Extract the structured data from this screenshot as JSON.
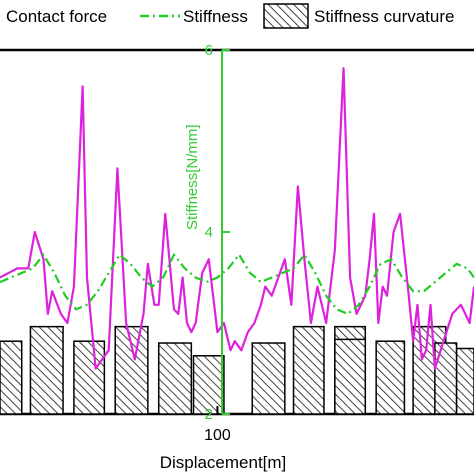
{
  "chart_data": {
    "type": "line",
    "title": "",
    "xlabel": "Displacement[m]",
    "ylabel": "Stiffness[N/mm]",
    "x_ticks": [
      100
    ],
    "y_ticks": [
      2,
      4,
      6
    ],
    "xlim": [
      0,
      218
    ],
    "ylim": [
      2,
      6
    ],
    "legend_position": "top",
    "colors": {
      "contact_force": "#dd22dd",
      "stiffness": "#22cc22",
      "axis_green": "#33cc33",
      "bars_edge": "#000000",
      "hatch": "#444444"
    },
    "series": [
      {
        "name": "Contact force",
        "style": "solid-line",
        "x": [
          0,
          4,
          8,
          13,
          16,
          20,
          22,
          24,
          28,
          31,
          34,
          38,
          40,
          44,
          50,
          54,
          58,
          62,
          66,
          68,
          71,
          73,
          76,
          80,
          82,
          84,
          86,
          88,
          90,
          93,
          96,
          100,
          103,
          106,
          108,
          111,
          114,
          117,
          120,
          122,
          125,
          128,
          131,
          134,
          137,
          140,
          143,
          146,
          150,
          154,
          158,
          161,
          164,
          168,
          170,
          172,
          174,
          176,
          178,
          181,
          184,
          188,
          190,
          192,
          194,
          196,
          198,
          200,
          204,
          208,
          212,
          216,
          218
        ],
        "y": [
          3.5,
          3.55,
          3.6,
          3.6,
          4.0,
          3.7,
          3.1,
          3.35,
          3.1,
          3.0,
          3.4,
          5.6,
          3.5,
          2.5,
          2.7,
          4.7,
          3.0,
          2.6,
          3.1,
          3.65,
          3.2,
          3.2,
          4.2,
          3.15,
          3.1,
          3.5,
          3.0,
          2.9,
          3.0,
          3.55,
          3.7,
          2.9,
          3.0,
          2.7,
          2.8,
          2.7,
          2.9,
          3.0,
          3.2,
          3.4,
          3.3,
          3.5,
          3.7,
          3.2,
          4.5,
          3.7,
          3.0,
          3.4,
          3.0,
          3.8,
          5.8,
          3.5,
          3.1,
          3.3,
          3.7,
          4.2,
          3.0,
          3.4,
          3.3,
          4.0,
          4.2,
          3.3,
          2.8,
          3.2,
          2.6,
          2.7,
          3.2,
          2.5,
          2.8,
          3.1,
          3.2,
          3.0,
          3.4
        ]
      },
      {
        "name": "Stiffness",
        "style": "dash-dot-line",
        "x": [
          0,
          5,
          10,
          15,
          20,
          25,
          30,
          35,
          40,
          45,
          50,
          55,
          60,
          65,
          70,
          75,
          80,
          85,
          90,
          95,
          100,
          105,
          110,
          115,
          120,
          125,
          130,
          135,
          140,
          145,
          150,
          155,
          160,
          165,
          170,
          175,
          180,
          185,
          190,
          195,
          200,
          205,
          210,
          215,
          218
        ],
        "y": [
          3.45,
          3.5,
          3.55,
          3.6,
          3.75,
          3.55,
          3.3,
          3.15,
          3.2,
          3.35,
          3.55,
          3.75,
          3.65,
          3.5,
          3.4,
          3.5,
          3.75,
          3.6,
          3.5,
          3.45,
          3.5,
          3.6,
          3.75,
          3.55,
          3.45,
          3.5,
          3.55,
          3.6,
          3.75,
          3.55,
          3.3,
          3.15,
          3.1,
          3.2,
          3.4,
          3.65,
          3.7,
          3.5,
          3.35,
          3.35,
          3.45,
          3.55,
          3.65,
          3.6,
          3.5
        ]
      },
      {
        "name": "Stiffness curvature",
        "style": "hatched-bars",
        "bars": [
          {
            "x0": 0,
            "x1": 10,
            "y": 2.8
          },
          {
            "x0": 14,
            "x1": 29,
            "y": 2.96
          },
          {
            "x0": 34,
            "x1": 48,
            "y": 2.8
          },
          {
            "x0": 53,
            "x1": 68,
            "y": 2.96
          },
          {
            "x0": 73,
            "x1": 88,
            "y": 2.78
          },
          {
            "x0": 89,
            "x1": 103,
            "y": 2.64
          },
          {
            "x0": 116,
            "x1": 131,
            "y": 2.78
          },
          {
            "x0": 135,
            "x1": 149,
            "y": 2.96
          },
          {
            "x0": 154,
            "x1": 168,
            "y": 2.96
          },
          {
            "x0": 154,
            "x1": 168,
            "y": 2.82
          },
          {
            "x0": 173,
            "x1": 186,
            "y": 2.8
          },
          {
            "x0": 190,
            "x1": 205,
            "y": 2.96
          },
          {
            "x0": 200,
            "x1": 210,
            "y": 2.78
          },
          {
            "x0": 210,
            "x1": 218,
            "y": 2.72
          }
        ]
      }
    ]
  }
}
